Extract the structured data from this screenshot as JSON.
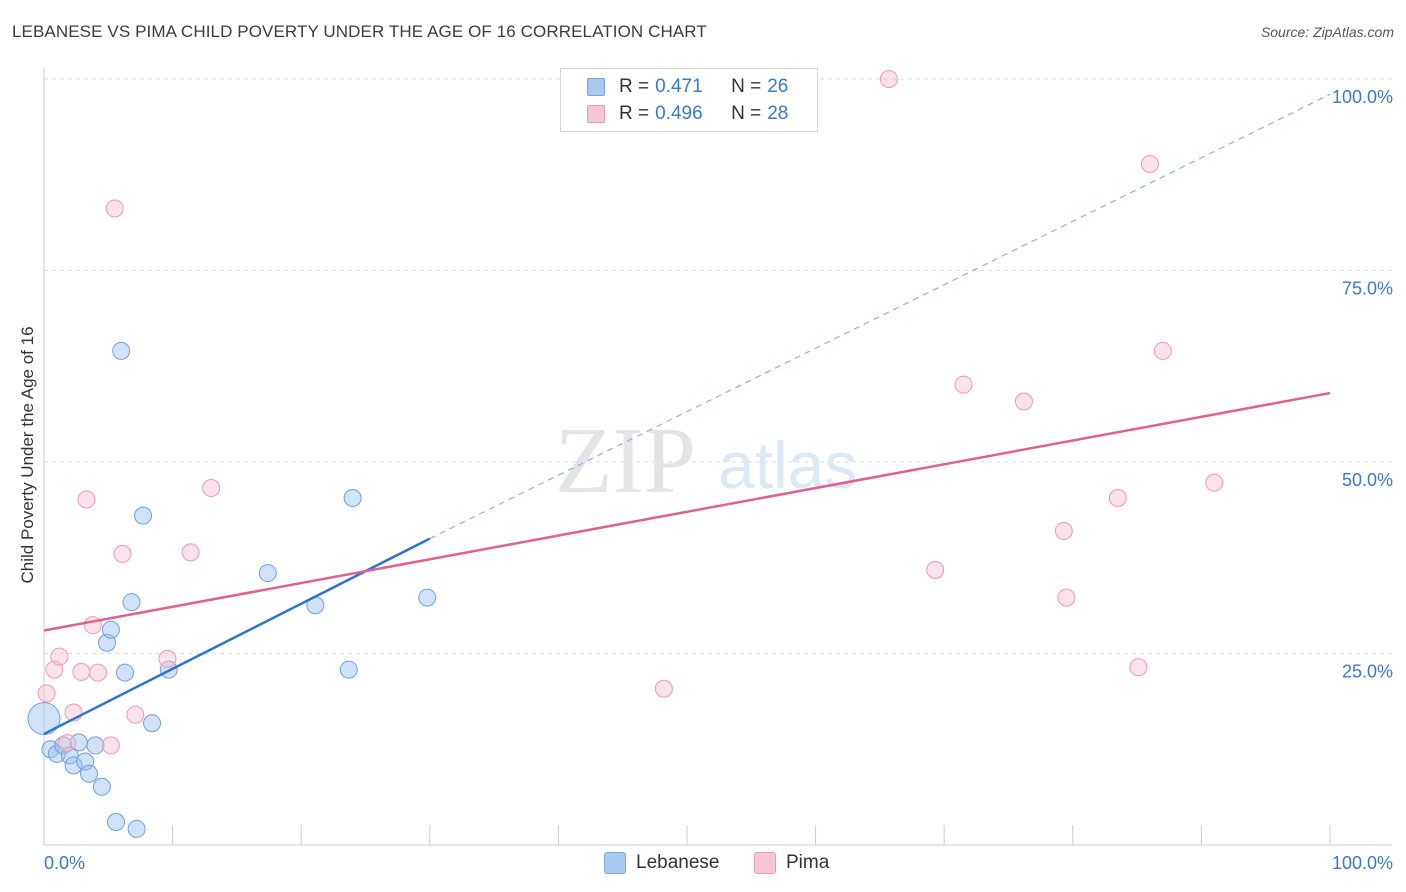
{
  "header": {
    "title": "LEBANESE VS PIMA CHILD POVERTY UNDER THE AGE OF 16 CORRELATION CHART",
    "source": "Source: ZipAtlas.com"
  },
  "watermark": {
    "zip": "ZIP",
    "atlas": "atlas"
  },
  "legend": {
    "series": [
      {
        "r_label": "R =",
        "r_value": "0.471",
        "n_label": "N =",
        "n_value": "26",
        "color": "#a9c8f0",
        "border": "#7aa6e0"
      },
      {
        "r_label": "R =",
        "r_value": "0.496",
        "n_label": "N =",
        "n_value": "28",
        "color": "#f8c5d4",
        "border": "#ec9ab3"
      }
    ]
  },
  "bottom_legend": {
    "items": [
      "Lebanese",
      "Pima"
    ]
  },
  "chart_data": {
    "type": "scatter",
    "title": "LEBANESE VS PIMA CHILD POVERTY UNDER THE AGE OF 16 CORRELATION CHART",
    "xlabel": "",
    "ylabel": "Child Poverty Under the Age of 16",
    "xlim": [
      0,
      100
    ],
    "ylim": [
      0,
      100
    ],
    "x_tick_labels": [
      "0.0%",
      "100.0%"
    ],
    "y_tick_labels": [
      "25.0%",
      "50.0%",
      "75.0%",
      "100.0%"
    ],
    "y_ticks": [
      25,
      50,
      75,
      100
    ],
    "grid": true,
    "series": [
      {
        "name": "Lebanese",
        "color": "#6fa0e0",
        "fill": "rgba(150,190,240,0.45)",
        "line_color": "#2d74d0",
        "trend": {
          "x0": 0,
          "y0": 14.5,
          "x1": 30,
          "y1": 40,
          "extend_to_x": 100,
          "extend_to_y": 98
        },
        "points": [
          [
            0,
            16.5
          ],
          [
            0.5,
            12.5
          ],
          [
            1.0,
            11.9
          ],
          [
            1.5,
            13.0
          ],
          [
            2.0,
            11.7
          ],
          [
            2.3,
            10.4
          ],
          [
            2.7,
            13.4
          ],
          [
            3.2,
            10.9
          ],
          [
            3.5,
            9.3
          ],
          [
            4.0,
            13.0
          ],
          [
            4.5,
            7.6
          ],
          [
            4.9,
            26.4
          ],
          [
            5.2,
            28.1
          ],
          [
            5.6,
            3.0
          ],
          [
            6.0,
            64.5
          ],
          [
            6.3,
            22.5
          ],
          [
            6.8,
            31.7
          ],
          [
            7.2,
            2.1
          ],
          [
            7.7,
            43.0
          ],
          [
            8.4,
            15.9
          ],
          [
            9.7,
            22.9
          ],
          [
            17.4,
            35.5
          ],
          [
            21.1,
            31.3
          ],
          [
            23.7,
            22.9
          ],
          [
            24.0,
            45.3
          ],
          [
            29.8,
            32.3
          ]
        ]
      },
      {
        "name": "Pima",
        "color": "#ee9ab4",
        "fill": "rgba(248,190,208,0.45)",
        "line_color": "#e0608e",
        "trend": {
          "x0": 0,
          "y0": 28.0,
          "x1": 100,
          "y1": 59.0
        },
        "points": [
          [
            0.2,
            19.8
          ],
          [
            0.8,
            22.9
          ],
          [
            1.2,
            24.6
          ],
          [
            1.8,
            13.3
          ],
          [
            2.3,
            17.3
          ],
          [
            2.9,
            22.6
          ],
          [
            3.3,
            45.1
          ],
          [
            3.8,
            28.7
          ],
          [
            4.2,
            22.5
          ],
          [
            5.2,
            13.0
          ],
          [
            5.5,
            83.1
          ],
          [
            6.1,
            38.0
          ],
          [
            7.1,
            17.0
          ],
          [
            9.6,
            24.3
          ],
          [
            11.4,
            38.2
          ],
          [
            13.0,
            46.6
          ],
          [
            48.2,
            20.4
          ],
          [
            65.7,
            100.0
          ],
          [
            69.3,
            35.9
          ],
          [
            71.5,
            60.1
          ],
          [
            76.2,
            57.9
          ],
          [
            79.3,
            41.0
          ],
          [
            79.5,
            32.3
          ],
          [
            83.5,
            45.3
          ],
          [
            85.1,
            23.2
          ],
          [
            86.0,
            88.9
          ],
          [
            87.0,
            64.5
          ],
          [
            91.0,
            47.3
          ]
        ]
      }
    ]
  }
}
